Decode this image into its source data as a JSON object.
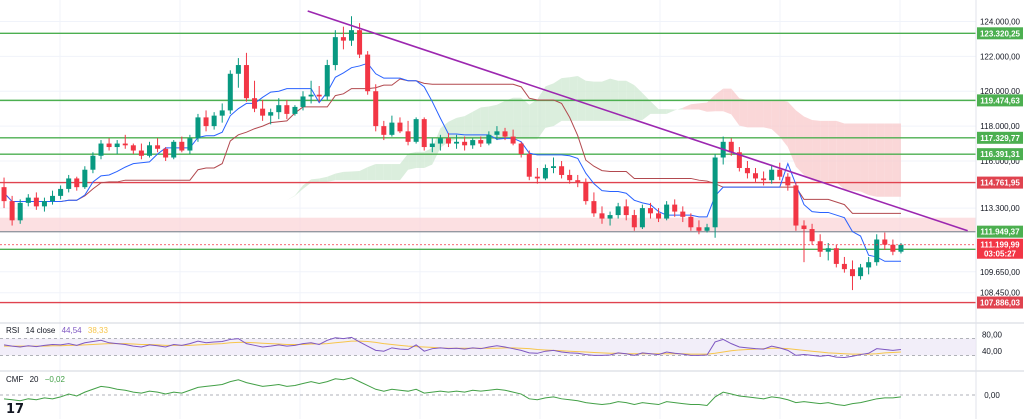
{
  "colors": {
    "up": "#089981",
    "down": "#f23645",
    "support": "#4caf50",
    "resistance": "#e0434f",
    "trendline": "#9c27b0",
    "kijun": "#b2494f",
    "tenkan": "#2962ff",
    "cloud_bear": "#f8c9cb",
    "cloud_bull": "#cfe8d2",
    "rsi_line": "#7e57c2",
    "rsi_ma": "#f7c64c",
    "rsi_band": "#ede7f6",
    "cmf_line": "#43a047",
    "pink_band": "#fbd3d6"
  },
  "indicators": {
    "rsi": {
      "name": "RSI",
      "params": "14 close",
      "value": "44,54",
      "ma_value": "38,33"
    },
    "cmf": {
      "name": "CMF",
      "params": "20",
      "value": "−0,02"
    }
  },
  "branding": {
    "logo": "17"
  },
  "price_axis": {
    "ticks": [
      "124.000,00",
      "122.000,00",
      "120.000,00",
      "118.000,00",
      "116.000,00",
      "113.300,00",
      "109.650,00",
      "108.450,00"
    ]
  },
  "rsi_axis": {
    "ticks": [
      "80,00",
      "40,00"
    ]
  },
  "cmf_axis": {
    "ticks": [
      "0,00"
    ]
  },
  "current": {
    "price": "111.199,99",
    "countdown": "03:05:27"
  },
  "chart_data": {
    "type": "candlestick",
    "price_range": [
      107000,
      125000
    ],
    "levels": [
      {
        "label": "123.320,25",
        "value": 123320.25,
        "kind": "support"
      },
      {
        "label": "119.474,63",
        "value": 119474.63,
        "kind": "support"
      },
      {
        "label": "117.329,77",
        "value": 117329.77,
        "kind": "support"
      },
      {
        "label": "116.391,31",
        "value": 116391.31,
        "kind": "support"
      },
      {
        "label": "114.761,95",
        "value": 114761.95,
        "kind": "resistance"
      },
      {
        "label": "111.949,37",
        "value": 111949.37,
        "kind": "neutral"
      },
      {
        "label": "110.936,87",
        "value": 110936.87,
        "kind": "support"
      },
      {
        "label": "107.886,03",
        "value": 107886.03,
        "kind": "resistance"
      }
    ],
    "pink_band": [
      111949.37,
      112750
    ],
    "trendline": {
      "from_bar": 0.34,
      "from": 124600,
      "to_bar": 0.945,
      "to": 112000
    },
    "candles": [
      [
        114500,
        115050,
        113300,
        113700
      ],
      [
        113700,
        114000,
        112300,
        112600
      ],
      [
        112600,
        113800,
        112400,
        113600
      ],
      [
        113600,
        114100,
        113400,
        113900
      ],
      [
        113900,
        114200,
        113200,
        113400
      ],
      [
        113400,
        113900,
        113100,
        113700
      ],
      [
        113700,
        114300,
        113500,
        114000
      ],
      [
        114000,
        114600,
        113800,
        114400
      ],
      [
        114400,
        115200,
        114200,
        115000
      ],
      [
        115000,
        115100,
        114300,
        114500
      ],
      [
        114500,
        115700,
        114400,
        115500
      ],
      [
        115500,
        116500,
        115300,
        116300
      ],
      [
        116300,
        117200,
        116100,
        117000
      ],
      [
        117000,
        117300,
        116600,
        116800
      ],
      [
        116800,
        117200,
        116400,
        117000
      ],
      [
        117000,
        117500,
        116700,
        116900
      ],
      [
        116900,
        117000,
        116400,
        116600
      ],
      [
        116600,
        117000,
        116100,
        116300
      ],
      [
        116300,
        117100,
        116200,
        116900
      ],
      [
        116900,
        117300,
        116500,
        116700
      ],
      [
        116700,
        116800,
        116000,
        116200
      ],
      [
        116200,
        117200,
        116100,
        117100
      ],
      [
        117100,
        117400,
        116500,
        116600
      ],
      [
        116600,
        117500,
        116400,
        117300
      ],
      [
        117300,
        118700,
        117100,
        118500
      ],
      [
        118500,
        118900,
        117700,
        118000
      ],
      [
        118000,
        118800,
        117800,
        118600
      ],
      [
        118600,
        119300,
        118200,
        118900
      ],
      [
        118900,
        121200,
        118700,
        121000
      ],
      [
        121000,
        121900,
        120200,
        121500
      ],
      [
        121500,
        122200,
        119400,
        119600
      ],
      [
        119600,
        120600,
        118800,
        119000
      ],
      [
        119000,
        119500,
        118300,
        118600
      ],
      [
        118600,
        119000,
        118100,
        118800
      ],
      [
        118800,
        119600,
        118400,
        119200
      ],
      [
        119200,
        119500,
        118400,
        118700
      ],
      [
        118700,
        119200,
        118600,
        119100
      ],
      [
        119100,
        120000,
        118900,
        119700
      ],
      [
        119700,
        120600,
        119300,
        119800
      ],
      [
        119800,
        120300,
        119400,
        119700
      ],
      [
        119700,
        121800,
        119500,
        121500
      ],
      [
        121500,
        123500,
        121200,
        123100
      ],
      [
        123100,
        123700,
        122400,
        122900
      ],
      [
        122900,
        124300,
        122600,
        123500
      ],
      [
        123500,
        123900,
        121900,
        122100
      ],
      [
        122100,
        122300,
        119800,
        120000
      ],
      [
        120000,
        120400,
        117700,
        118000
      ],
      [
        118000,
        118300,
        117200,
        117500
      ],
      [
        117500,
        118600,
        117400,
        118200
      ],
      [
        118200,
        118500,
        117600,
        117700
      ],
      [
        117700,
        118300,
        116900,
        117100
      ],
      [
        117100,
        118500,
        117000,
        118400
      ],
      [
        118400,
        118500,
        116600,
        116800
      ],
      [
        116800,
        117300,
        116500,
        117000
      ],
      [
        117000,
        117500,
        116600,
        117300
      ],
      [
        117300,
        117600,
        116800,
        117000
      ],
      [
        117000,
        117500,
        116700,
        117100
      ],
      [
        117100,
        117400,
        116600,
        116900
      ],
      [
        116900,
        117300,
        116700,
        117200
      ],
      [
        117200,
        117400,
        116800,
        117000
      ],
      [
        117000,
        117700,
        116900,
        117500
      ],
      [
        117500,
        118000,
        117200,
        117700
      ],
      [
        117700,
        117900,
        117200,
        117400
      ],
      [
        117400,
        117800,
        116900,
        117000
      ],
      [
        117000,
        117100,
        116200,
        116400
      ],
      [
        116400,
        116600,
        114900,
        115100
      ],
      [
        115100,
        115600,
        114700,
        115000
      ],
      [
        115000,
        115800,
        114900,
        115600
      ],
      [
        115600,
        116200,
        115300,
        115700
      ],
      [
        115700,
        116000,
        115000,
        115200
      ],
      [
        115200,
        115500,
        114700,
        114900
      ],
      [
        114900,
        115200,
        114500,
        114800
      ],
      [
        114800,
        115000,
        113500,
        113700
      ],
      [
        113700,
        114200,
        112800,
        113000
      ],
      [
        113000,
        113400,
        112400,
        112700
      ],
      [
        112700,
        113100,
        112300,
        112900
      ],
      [
        112900,
        113600,
        112700,
        113400
      ],
      [
        113400,
        113800,
        112600,
        112900
      ],
      [
        112900,
        113200,
        112000,
        112200
      ],
      [
        112200,
        113500,
        112100,
        113300
      ],
      [
        113300,
        113600,
        112700,
        113000
      ],
      [
        113000,
        113300,
        112500,
        112700
      ],
      [
        112700,
        113700,
        112600,
        113500
      ],
      [
        113500,
        113800,
        112800,
        113100
      ],
      [
        113100,
        113400,
        112500,
        112800
      ],
      [
        112800,
        113000,
        112000,
        112200
      ],
      [
        112200,
        112600,
        111800,
        112000
      ],
      [
        112000,
        112400,
        111900,
        112200
      ],
      [
        112200,
        116400,
        111600,
        116200
      ],
      [
        116200,
        117400,
        115800,
        117100
      ],
      [
        117100,
        117300,
        116300,
        116500
      ],
      [
        116500,
        116800,
        115400,
        115600
      ],
      [
        115600,
        116000,
        115000,
        115300
      ],
      [
        115300,
        115600,
        114800,
        115000
      ],
      [
        115000,
        115400,
        114600,
        114900
      ],
      [
        114900,
        115800,
        114700,
        115500
      ],
      [
        115500,
        115900,
        114900,
        115100
      ],
      [
        115100,
        115300,
        114300,
        114600
      ],
      [
        114600,
        114800,
        112000,
        112300
      ],
      [
        112300,
        112600,
        110200,
        112100
      ],
      [
        112100,
        112400,
        111200,
        111400
      ],
      [
        111400,
        111800,
        110500,
        110800
      ],
      [
        110800,
        111300,
        110300,
        111000
      ],
      [
        111000,
        111200,
        109900,
        110100
      ],
      [
        110100,
        110500,
        109600,
        109800
      ],
      [
        109800,
        110300,
        108600,
        109400
      ],
      [
        109400,
        110100,
        109200,
        109900
      ],
      [
        109900,
        110500,
        109500,
        110200
      ],
      [
        110200,
        111800,
        110000,
        111500
      ],
      [
        111500,
        111900,
        110900,
        111200
      ],
      [
        111200,
        111500,
        110600,
        110800
      ],
      [
        110800,
        111300,
        110700,
        111200
      ]
    ],
    "rsi": [
      55,
      52,
      50,
      53,
      51,
      54,
      56,
      55,
      58,
      54,
      60,
      63,
      66,
      60,
      58,
      56,
      52,
      50,
      55,
      53,
      50,
      56,
      54,
      58,
      64,
      60,
      62,
      63,
      68,
      70,
      58,
      54,
      50,
      52,
      55,
      52,
      54,
      58,
      60,
      56,
      66,
      72,
      70,
      73,
      62,
      52,
      42,
      40,
      48,
      45,
      44,
      55,
      40,
      46,
      48,
      46,
      47,
      45,
      48,
      46,
      50,
      53,
      50,
      46,
      42,
      36,
      35,
      40,
      42,
      38,
      36,
      35,
      32,
      30,
      30,
      31,
      36,
      34,
      30,
      36,
      34,
      32,
      38,
      35,
      33,
      30,
      30,
      31,
      62,
      68,
      58,
      50,
      48,
      46,
      45,
      52,
      48,
      42,
      30,
      32,
      30,
      28,
      30,
      26,
      25,
      28,
      32,
      35,
      46,
      44,
      42,
      44
    ],
    "rsi_ma": [
      52,
      52,
      52,
      52,
      52,
      52,
      53,
      53,
      54,
      54,
      55,
      56,
      57,
      58,
      58,
      58,
      57,
      56,
      56,
      55,
      54,
      54,
      54,
      54,
      55,
      56,
      57,
      58,
      60,
      61,
      61,
      60,
      59,
      58,
      57,
      56,
      56,
      56,
      57,
      57,
      58,
      60,
      62,
      64,
      64,
      63,
      61,
      58,
      56,
      54,
      52,
      51,
      50,
      49,
      48,
      47,
      47,
      47,
      47,
      47,
      47,
      47,
      48,
      48,
      47,
      46,
      44,
      43,
      42,
      41,
      40,
      39,
      38,
      37,
      36,
      35,
      35,
      34,
      34,
      34,
      34,
      34,
      34,
      34,
      34,
      33,
      33,
      33,
      35,
      38,
      41,
      43,
      44,
      45,
      46,
      47,
      47,
      46,
      44,
      42,
      40,
      38,
      36,
      35,
      34,
      33,
      33,
      33,
      34,
      36,
      37,
      38
    ],
    "cmf": [
      -0.04,
      -0.05,
      -0.06,
      -0.04,
      -0.05,
      -0.03,
      -0.04,
      -0.02,
      0.01,
      -0.01,
      0.03,
      0.06,
      0.09,
      0.08,
      0.06,
      0.05,
      0.03,
      0.02,
      0.04,
      0.03,
      0.01,
      0.03,
      0.02,
      0.05,
      0.08,
      0.09,
      0.1,
      0.11,
      0.14,
      0.16,
      0.13,
      0.11,
      0.09,
      0.1,
      0.11,
      0.09,
      0.1,
      0.12,
      0.14,
      0.12,
      0.14,
      0.17,
      0.16,
      0.18,
      0.14,
      0.1,
      0.06,
      0.04,
      0.06,
      0.05,
      0.04,
      0.06,
      0.02,
      0.03,
      0.04,
      0.03,
      0.04,
      0.03,
      0.05,
      0.04,
      0.05,
      0.06,
      0.05,
      0.03,
      0.01,
      -0.04,
      -0.05,
      -0.03,
      -0.02,
      -0.04,
      -0.05,
      -0.06,
      -0.08,
      -0.09,
      -0.1,
      -0.09,
      -0.07,
      -0.08,
      -0.1,
      -0.08,
      -0.09,
      -0.1,
      -0.07,
      -0.08,
      -0.09,
      -0.1,
      -0.1,
      -0.11,
      -0.02,
      0.03,
      0.01,
      -0.01,
      -0.02,
      -0.03,
      -0.04,
      -0.02,
      -0.03,
      -0.05,
      -0.08,
      -0.07,
      -0.08,
      -0.09,
      -0.08,
      -0.1,
      -0.11,
      -0.09,
      -0.08,
      -0.06,
      -0.04,
      -0.03,
      -0.03,
      -0.02
    ]
  }
}
